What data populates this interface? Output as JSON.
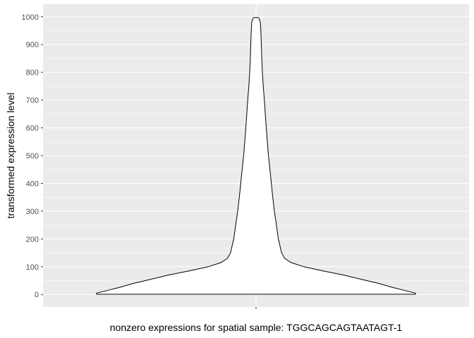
{
  "chart_data": {
    "type": "violin",
    "xlabel": "nonzero expressions for spatial sample: TGGCAGCAGTAATAGT-1",
    "ylabel": "transformed expression level",
    "ylim": [
      -45,
      1045
    ],
    "y_ticks": [
      0,
      100,
      200,
      300,
      400,
      500,
      600,
      700,
      800,
      900,
      1000
    ],
    "categories": [
      ""
    ],
    "series": [
      {
        "y_min": 1,
        "y_max": 997,
        "relative_width_profile": [
          {
            "y": 1,
            "w": 1.0
          },
          {
            "y": 5,
            "w": 1.0
          },
          {
            "y": 15,
            "w": 0.93
          },
          {
            "y": 25,
            "w": 0.86
          },
          {
            "y": 40,
            "w": 0.77
          },
          {
            "y": 55,
            "w": 0.66
          },
          {
            "y": 70,
            "w": 0.55
          },
          {
            "y": 85,
            "w": 0.42
          },
          {
            "y": 100,
            "w": 0.3
          },
          {
            "y": 115,
            "w": 0.22
          },
          {
            "y": 130,
            "w": 0.18
          },
          {
            "y": 150,
            "w": 0.16
          },
          {
            "y": 200,
            "w": 0.14
          },
          {
            "y": 250,
            "w": 0.128
          },
          {
            "y": 300,
            "w": 0.115
          },
          {
            "y": 350,
            "w": 0.105
          },
          {
            "y": 400,
            "w": 0.096
          },
          {
            "y": 450,
            "w": 0.087
          },
          {
            "y": 500,
            "w": 0.078
          },
          {
            "y": 550,
            "w": 0.071
          },
          {
            "y": 600,
            "w": 0.064
          },
          {
            "y": 650,
            "w": 0.058
          },
          {
            "y": 700,
            "w": 0.052
          },
          {
            "y": 750,
            "w": 0.045
          },
          {
            "y": 800,
            "w": 0.04
          },
          {
            "y": 850,
            "w": 0.036
          },
          {
            "y": 900,
            "w": 0.033
          },
          {
            "y": 950,
            "w": 0.03
          },
          {
            "y": 980,
            "w": 0.027
          },
          {
            "y": 995,
            "w": 0.018
          },
          {
            "y": 997,
            "w": 0.012
          }
        ]
      }
    ],
    "fill": "#ffffff",
    "stroke": "#000000",
    "panel_background": "#ebebeb",
    "grid": true,
    "grid_color": "#ffffff",
    "legend": "none"
  }
}
